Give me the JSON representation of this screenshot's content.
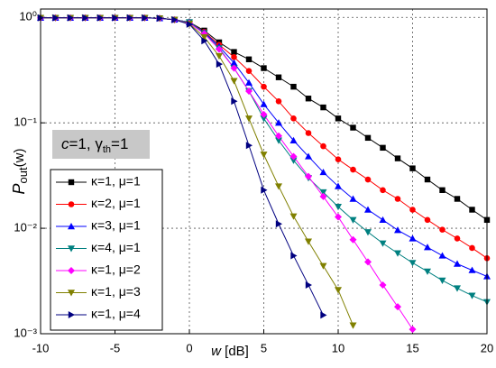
{
  "chart_data": {
    "type": "line",
    "x_label": [
      "w",
      " [dB]"
    ],
    "y_label": [
      "P",
      "out",
      "(w)"
    ],
    "annotation": [
      "c",
      "=1, γ",
      "th",
      "=1"
    ],
    "x": [
      -10,
      -9,
      -8,
      -7,
      -6,
      -5,
      -4,
      -3,
      -2,
      -1,
      0,
      1,
      2,
      3,
      4,
      5,
      6,
      7,
      8,
      9,
      10,
      11,
      12,
      13,
      14,
      15,
      16,
      17,
      18,
      19,
      20
    ],
    "xlim": [
      -10,
      20
    ],
    "xticks": [
      -10,
      -5,
      0,
      5,
      10,
      15,
      20
    ],
    "ylim": [
      0.001,
      1.2
    ],
    "yscale": "log",
    "yticks": [
      {
        "value": 1,
        "label": "10⁰"
      },
      {
        "value": 0.1,
        "label": "10⁻¹"
      },
      {
        "value": 0.01,
        "label": "10⁻²"
      },
      {
        "value": 0.001,
        "label": "10⁻³"
      }
    ],
    "grid": true,
    "legend": "lower left",
    "series": [
      {
        "name": "κ=1, μ=1",
        "color": "#000000",
        "marker": "square",
        "values": [
          0.99,
          0.99,
          0.99,
          0.99,
          0.99,
          0.99,
          0.99,
          0.99,
          0.98,
          0.95,
          0.9,
          0.75,
          0.58,
          0.47,
          0.4,
          0.33,
          0.27,
          0.22,
          0.17,
          0.14,
          0.11,
          0.09,
          0.072,
          0.058,
          0.046,
          0.037,
          0.029,
          0.023,
          0.019,
          0.015,
          0.012
        ]
      },
      {
        "name": "κ=2, μ=1",
        "color": "#ff0000",
        "marker": "circle",
        "values": [
          0.99,
          0.99,
          0.99,
          0.99,
          0.99,
          0.99,
          0.99,
          0.99,
          0.98,
          0.95,
          0.9,
          0.73,
          0.55,
          0.42,
          0.31,
          0.22,
          0.16,
          0.11,
          0.08,
          0.06,
          0.045,
          0.036,
          0.029,
          0.023,
          0.019,
          0.015,
          0.012,
          0.0097,
          0.008,
          0.0065,
          0.0052
        ]
      },
      {
        "name": "κ=3, μ=1",
        "color": "#0000ff",
        "marker": "triangle-up",
        "values": [
          0.99,
          0.99,
          0.99,
          0.99,
          0.99,
          0.99,
          0.99,
          0.99,
          0.98,
          0.95,
          0.9,
          0.72,
          0.53,
          0.37,
          0.24,
          0.15,
          0.1,
          0.068,
          0.048,
          0.034,
          0.025,
          0.019,
          0.015,
          0.012,
          0.0096,
          0.008,
          0.0066,
          0.0055,
          0.0046,
          0.004,
          0.0035
        ]
      },
      {
        "name": "κ=4, μ=1",
        "color": "#008080",
        "marker": "triangle-down",
        "values": [
          0.99,
          0.99,
          0.99,
          0.99,
          0.99,
          0.99,
          0.99,
          0.99,
          0.98,
          0.95,
          0.9,
          0.71,
          0.51,
          0.33,
          0.2,
          0.11,
          0.068,
          0.044,
          0.03,
          0.022,
          0.016,
          0.012,
          0.0092,
          0.0072,
          0.0058,
          0.0047,
          0.0039,
          0.0032,
          0.0027,
          0.0023,
          0.002
        ]
      },
      {
        "name": "κ=1, μ=2",
        "color": "#ff00ff",
        "marker": "diamond",
        "values": [
          0.99,
          0.99,
          0.99,
          0.99,
          0.99,
          0.99,
          0.99,
          0.99,
          0.98,
          0.95,
          0.88,
          0.7,
          0.5,
          0.33,
          0.2,
          0.12,
          0.075,
          0.048,
          0.031,
          0.02,
          0.0128,
          0.0078,
          0.0048,
          0.0029,
          0.0018,
          0.0011,
          null,
          null,
          null,
          null,
          null
        ]
      },
      {
        "name": "κ=1, μ=3",
        "color": "#808000",
        "marker": "triangle-down",
        "values": [
          0.99,
          0.99,
          0.99,
          0.99,
          0.99,
          0.99,
          0.99,
          0.99,
          0.98,
          0.95,
          0.87,
          0.65,
          0.43,
          0.25,
          0.11,
          0.05,
          0.025,
          0.013,
          0.0075,
          0.0044,
          0.0026,
          0.0012,
          null,
          null,
          null,
          null,
          null,
          null,
          null,
          null,
          null
        ]
      },
      {
        "name": "κ=1, μ=4",
        "color": "#000080",
        "marker": "triangle-right",
        "values": [
          0.99,
          0.99,
          0.99,
          0.99,
          0.99,
          0.99,
          0.99,
          0.99,
          0.98,
          0.95,
          0.86,
          0.6,
          0.36,
          0.16,
          0.061,
          0.023,
          0.011,
          0.0055,
          0.0029,
          0.0015,
          null,
          null,
          null,
          null,
          null,
          null,
          null,
          null,
          null,
          null,
          null
        ]
      }
    ]
  }
}
